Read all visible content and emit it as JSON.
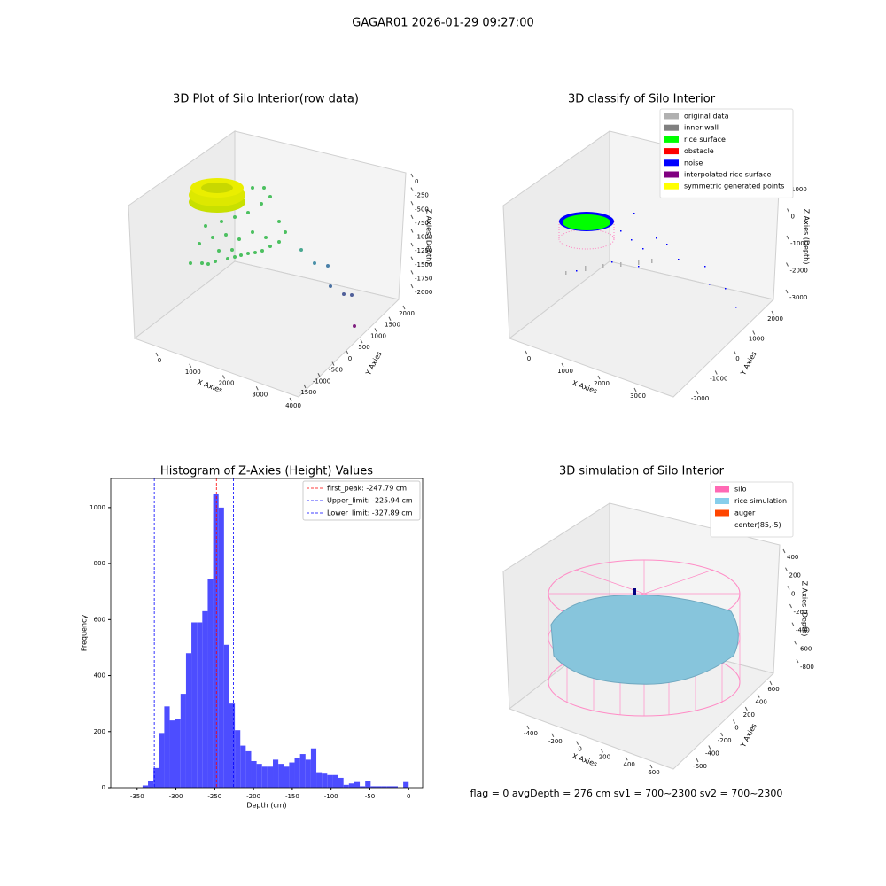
{
  "suptitle": "GAGAR01 2026-01-29 09:27:00",
  "footer": "flag = 0     avgDepth = 276 cm  sv1 = 700~2300  sv2 = 700~2300",
  "chart_data": [
    {
      "type": "scatter3d",
      "title": "3D Plot of Silo Interior(row data)",
      "xlabel": "X Axies",
      "ylabel": "Y Axies",
      "zlabel": "Z Axies (Depth)",
      "xlim": [
        0,
        4000
      ],
      "xticks": [
        0,
        1000,
        2000,
        3000,
        4000
      ],
      "ylim": [
        -1500,
        2000
      ],
      "yticks": [
        -1500,
        -1000,
        -500,
        0,
        500,
        1000,
        1500,
        2000
      ],
      "zlim": [
        0,
        -2000
      ],
      "zticks": [
        0,
        -250,
        -500,
        -750,
        -1000,
        -1250,
        -1500,
        -1750,
        -2000
      ]
    },
    {
      "type": "scatter3d",
      "title": "3D classify of Silo Interior",
      "xlabel": "X Axies",
      "ylabel": "Y Axies",
      "zlabel": "Z Axies (Depth)",
      "xlim": [
        0,
        3000
      ],
      "xticks": [
        0,
        1000,
        2000,
        3000
      ],
      "ylim": [
        -2000,
        2000
      ],
      "yticks": [
        -2000,
        -1000,
        0,
        1000,
        2000
      ],
      "zlim": [
        1000,
        -3000
      ],
      "zticks": [
        1000,
        0,
        -1000,
        -2000,
        -3000
      ],
      "legend": [
        {
          "name": "original data",
          "color": "#b0b0b0"
        },
        {
          "name": "inner wall",
          "color": "#808080"
        },
        {
          "name": "rice surface",
          "color": "#00ff00"
        },
        {
          "name": "obstacle",
          "color": "#ff0000"
        },
        {
          "name": "noise",
          "color": "#0000ff"
        },
        {
          "name": "interpolated rice surface",
          "color": "#800080"
        },
        {
          "name": "symmetric generated points",
          "color": "#ffff00"
        }
      ]
    },
    {
      "type": "histogram",
      "title": "Histogram of Z-Axies (Height) Values",
      "xlabel": "Depth (cm)",
      "ylabel": "Frequency",
      "color": "#4d4dff",
      "bins": [
        -343,
        -336,
        -329,
        -322,
        -315,
        -308,
        -301,
        -294,
        -287,
        -280,
        -273,
        -266,
        -259,
        -252,
        -245,
        -238,
        -231,
        -224,
        -217,
        -210,
        -203,
        -196,
        -189,
        -182,
        -175,
        -168,
        -161,
        -154,
        -147,
        -140,
        -133,
        -126,
        -119,
        -112,
        -105,
        -98,
        -91,
        -84,
        -77,
        -70,
        -63,
        -56,
        -49,
        -42,
        -35,
        -28,
        -21,
        -14,
        -7,
        0
      ],
      "counts": [
        8,
        25,
        70,
        195,
        290,
        240,
        245,
        335,
        480,
        590,
        590,
        630,
        745,
        1050,
        1000,
        510,
        300,
        205,
        150,
        130,
        95,
        85,
        75,
        75,
        100,
        85,
        75,
        90,
        105,
        120,
        100,
        140,
        55,
        50,
        45,
        45,
        35,
        10,
        15,
        20,
        5,
        25,
        5,
        5,
        5,
        5,
        5,
        0,
        20
      ],
      "xlim": [
        -384,
        18
      ],
      "xticks": [
        -350,
        -300,
        -250,
        -200,
        -150,
        -100,
        -50,
        0
      ],
      "ylim": [
        0,
        1104
      ],
      "yticks": [
        0,
        200,
        400,
        600,
        800,
        1000
      ],
      "vlines": [
        {
          "label": "first_peak: -247.79 cm",
          "value": -247.79,
          "color": "#ff0000"
        },
        {
          "label": "Upper_limit: -225.94 cm",
          "value": -225.94,
          "color": "#0000ff"
        },
        {
          "label": "Lower_limit: -327.89 cm",
          "value": -327.89,
          "color": "#0000ff"
        }
      ]
    },
    {
      "type": "scatter3d",
      "title": "3D simulation of Silo Interior",
      "xlabel": "X Axies",
      "ylabel": "Y Axies",
      "zlabel": "Z Axies (Depth)",
      "xlim": [
        -400,
        600
      ],
      "xticks": [
        -400,
        -200,
        0,
        200,
        400,
        600
      ],
      "ylim": [
        -600,
        600
      ],
      "yticks": [
        -600,
        -400,
        -200,
        0,
        200,
        400,
        600
      ],
      "zlim": [
        400,
        -800
      ],
      "zticks": [
        400,
        200,
        0,
        -200,
        -400,
        -600,
        -800
      ],
      "legend": [
        {
          "name": "silo",
          "color": "#ff69b4"
        },
        {
          "name": "rice simulation",
          "color": "#87ceeb"
        },
        {
          "name": "auger",
          "color": "#ff4500"
        },
        {
          "name": "center(85,-5)",
          "color": "#ffffff"
        }
      ]
    }
  ]
}
